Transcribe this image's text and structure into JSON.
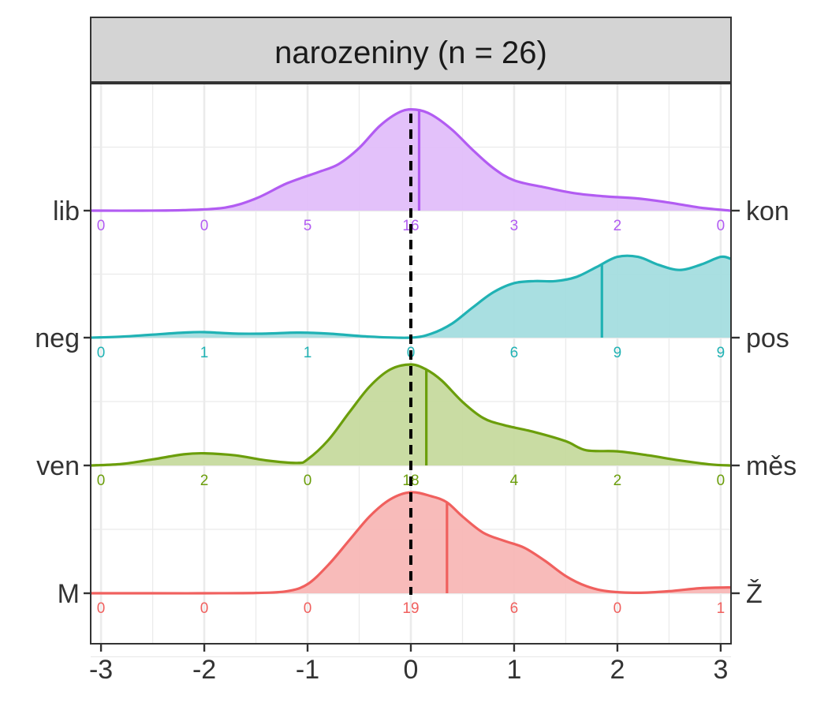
{
  "chart_data": {
    "type": "area",
    "facet_title": "narozeniny (n = 26)",
    "x": [
      -3,
      -2,
      -1,
      0,
      1,
      2,
      3
    ],
    "xlim": [
      -3.1,
      3.1
    ],
    "xticks": [
      "-3",
      "-2",
      "-1",
      "0",
      "1",
      "2",
      "3"
    ],
    "reference_line_x": 0,
    "grid": true,
    "series": [
      {
        "left_label": "M",
        "right_label": "Ž",
        "color": "#F0605E",
        "fill": "#F8B7B6",
        "counts": [
          0,
          0,
          0,
          19,
          6,
          0,
          1
        ],
        "mean": 0.35,
        "density": [
          [
            -3.1,
            0
          ],
          [
            -2.5,
            0
          ],
          [
            -2,
            0
          ],
          [
            -1.5,
            0.003
          ],
          [
            -1.2,
            0.02
          ],
          [
            -1,
            0.09
          ],
          [
            -0.8,
            0.28
          ],
          [
            -0.6,
            0.52
          ],
          [
            -0.4,
            0.76
          ],
          [
            -0.2,
            0.93
          ],
          [
            0,
            1.0
          ],
          [
            0.2,
            0.96
          ],
          [
            0.35,
            0.9
          ],
          [
            0.5,
            0.76
          ],
          [
            0.7,
            0.6
          ],
          [
            0.9,
            0.52
          ],
          [
            1.1,
            0.45
          ],
          [
            1.3,
            0.32
          ],
          [
            1.5,
            0.17
          ],
          [
            1.7,
            0.07
          ],
          [
            1.9,
            0.02
          ],
          [
            2.2,
            0.005
          ],
          [
            2.5,
            0.02
          ],
          [
            2.8,
            0.05
          ],
          [
            3.1,
            0.058
          ]
        ]
      },
      {
        "left_label": "ven",
        "right_label": "měs",
        "color": "#6B9E0B",
        "fill": "#C6DA9E",
        "counts": [
          0,
          2,
          0,
          18,
          4,
          2,
          0
        ],
        "mean": 0.15,
        "density": [
          [
            -3.1,
            0.0
          ],
          [
            -2.8,
            0.015
          ],
          [
            -2.5,
            0.06
          ],
          [
            -2.2,
            0.11
          ],
          [
            -2,
            0.12
          ],
          [
            -1.7,
            0.1
          ],
          [
            -1.4,
            0.05
          ],
          [
            -1.1,
            0.025
          ],
          [
            -1,
            0.06
          ],
          [
            -0.8,
            0.25
          ],
          [
            -0.6,
            0.52
          ],
          [
            -0.4,
            0.78
          ],
          [
            -0.2,
            0.95
          ],
          [
            0,
            1.0
          ],
          [
            0.15,
            0.95
          ],
          [
            0.3,
            0.84
          ],
          [
            0.5,
            0.63
          ],
          [
            0.7,
            0.47
          ],
          [
            0.9,
            0.4
          ],
          [
            1.2,
            0.33
          ],
          [
            1.5,
            0.24
          ],
          [
            1.7,
            0.15
          ],
          [
            2,
            0.14
          ],
          [
            2.3,
            0.1
          ],
          [
            2.6,
            0.05
          ],
          [
            2.9,
            0.01
          ],
          [
            3.1,
            0.0
          ]
        ]
      },
      {
        "left_label": "neg",
        "right_label": "pos",
        "color": "#20B2B4",
        "fill": "#A4DDDF",
        "counts": [
          0,
          1,
          1,
          0,
          6,
          9,
          9
        ],
        "mean": 1.85,
        "density": [
          [
            -3.1,
            0
          ],
          [
            -2.8,
            0.01
          ],
          [
            -2.5,
            0.03
          ],
          [
            -2.2,
            0.05
          ],
          [
            -2,
            0.055
          ],
          [
            -1.7,
            0.04
          ],
          [
            -1.4,
            0.04
          ],
          [
            -1.1,
            0.05
          ],
          [
            -0.8,
            0.04
          ],
          [
            -0.4,
            0.01
          ],
          [
            0,
            0.0
          ],
          [
            0.2,
            0.04
          ],
          [
            0.4,
            0.14
          ],
          [
            0.6,
            0.3
          ],
          [
            0.8,
            0.45
          ],
          [
            1.0,
            0.54
          ],
          [
            1.2,
            0.56
          ],
          [
            1.4,
            0.56
          ],
          [
            1.6,
            0.6
          ],
          [
            1.8,
            0.7
          ],
          [
            2.0,
            0.8
          ],
          [
            2.2,
            0.8
          ],
          [
            2.4,
            0.72
          ],
          [
            2.6,
            0.67
          ],
          [
            2.8,
            0.72
          ],
          [
            3.0,
            0.8
          ],
          [
            3.1,
            0.78
          ]
        ]
      },
      {
        "left_label": "lib",
        "right_label": "kon",
        "color": "#B25CF2",
        "fill": "#E2BEFA",
        "counts": [
          0,
          0,
          5,
          16,
          3,
          2,
          0
        ],
        "mean": 0.08,
        "density": [
          [
            -3.1,
            0
          ],
          [
            -2.6,
            0.0
          ],
          [
            -2.2,
            0.005
          ],
          [
            -1.8,
            0.03
          ],
          [
            -1.5,
            0.12
          ],
          [
            -1.2,
            0.27
          ],
          [
            -0.9,
            0.38
          ],
          [
            -0.7,
            0.46
          ],
          [
            -0.5,
            0.62
          ],
          [
            -0.3,
            0.84
          ],
          [
            -0.1,
            0.98
          ],
          [
            0.05,
            1.0
          ],
          [
            0.2,
            0.95
          ],
          [
            0.4,
            0.8
          ],
          [
            0.6,
            0.6
          ],
          [
            0.8,
            0.42
          ],
          [
            1.0,
            0.3
          ],
          [
            1.3,
            0.23
          ],
          [
            1.6,
            0.17
          ],
          [
            1.9,
            0.14
          ],
          [
            2.2,
            0.12
          ],
          [
            2.5,
            0.08
          ],
          [
            2.8,
            0.03
          ],
          [
            3.1,
            0.0
          ]
        ]
      }
    ]
  }
}
